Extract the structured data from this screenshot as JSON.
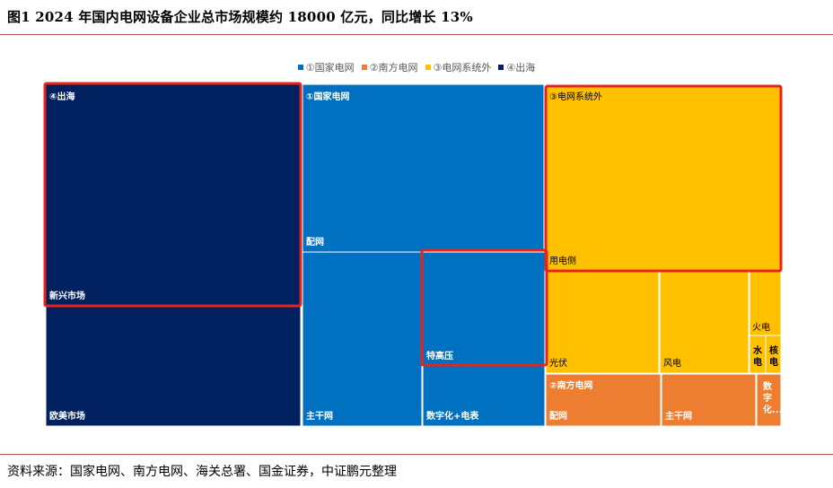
{
  "figure": {
    "title": "图1   2024 年国内电网设备企业总市场规模约 18000 亿元，同比增长 13%",
    "source": "资料来源：国家电网、南方电网、海关总署、国金证券，中证鹏元整理"
  },
  "chart_data": {
    "type": "treemap",
    "legend": [
      {
        "label": "①国家电网",
        "color": "#0070c0"
      },
      {
        "label": "②南方电网",
        "color": "#ed7d31"
      },
      {
        "label": "③电网系统外",
        "color": "#ffc000"
      },
      {
        "label": "④出海",
        "color": "#002060"
      }
    ],
    "groups": [
      {
        "name": "④出海",
        "color": "#002060",
        "highlighted": true,
        "children": [
          {
            "name": "新兴市场",
            "highlighted": true
          },
          {
            "name": "欧美市场"
          }
        ]
      },
      {
        "name": "①国家电网",
        "color": "#0070c0",
        "children": [
          {
            "name": "配网"
          },
          {
            "name": "主干网"
          },
          {
            "name": "特高压",
            "highlighted": true
          },
          {
            "name": "数字化+电表"
          }
        ]
      },
      {
        "name": "③电网系统外",
        "color": "#ffc000",
        "highlighted": true,
        "children": [
          {
            "name": "用电侧",
            "highlighted": true
          },
          {
            "name": "光伏"
          },
          {
            "name": "风电"
          },
          {
            "name": "火电"
          },
          {
            "name": "水电"
          },
          {
            "name": "核电"
          }
        ]
      },
      {
        "name": "②南方电网",
        "color": "#ed7d31",
        "children": [
          {
            "name": "配网"
          },
          {
            "name": "主干网"
          },
          {
            "name": "数字化..."
          }
        ]
      }
    ]
  }
}
